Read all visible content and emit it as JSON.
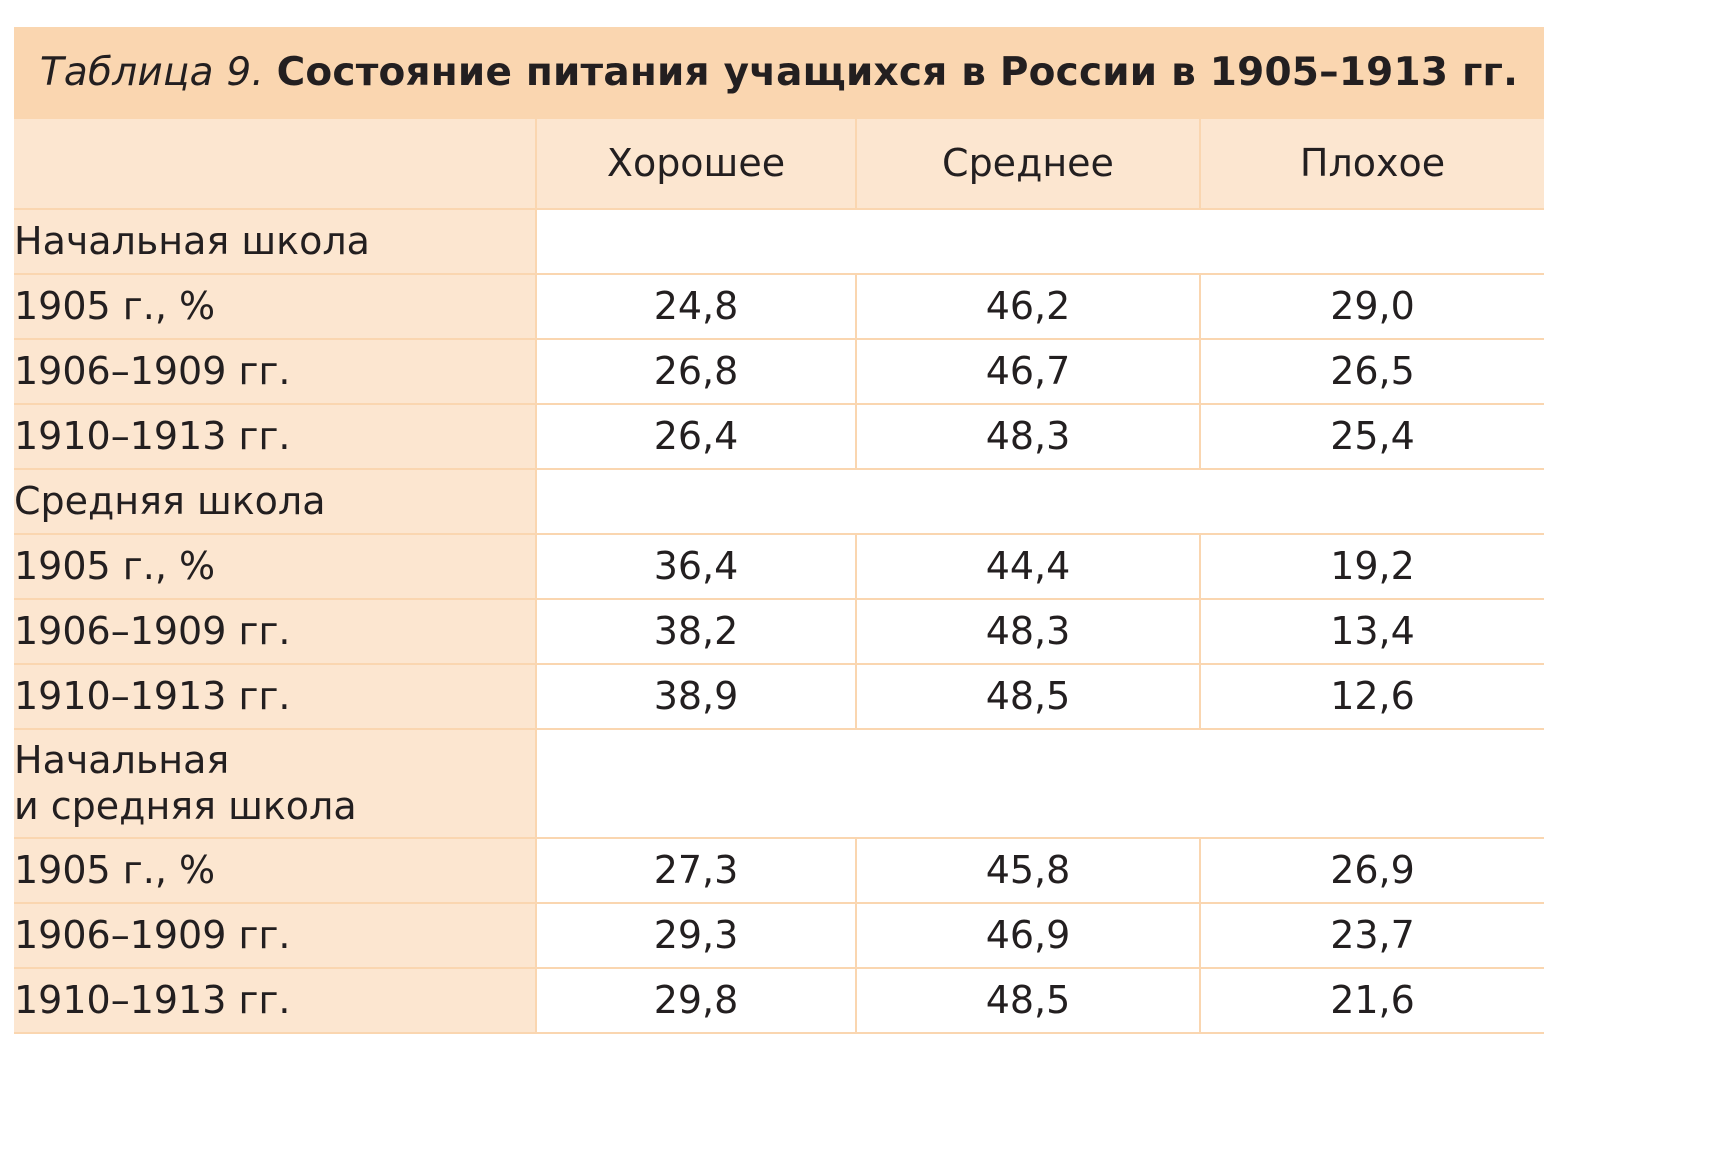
{
  "table": {
    "caption_label": "Таблица 9.",
    "caption_title": "Состояние питания учащихся в России в 1905–1913 гг.",
    "columns": [
      "",
      "Хорошее",
      "Среднее",
      "Плохое"
    ],
    "groups": [
      {
        "label_lines": [
          "Начальная школа"
        ],
        "rows": [
          {
            "label": "1905 г., %",
            "values": [
              "24,8",
              "46,2",
              "29,0"
            ]
          },
          {
            "label": "1906–1909 гг.",
            "values": [
              "26,8",
              "46,7",
              "26,5"
            ]
          },
          {
            "label": "1910–1913 гг.",
            "values": [
              "26,4",
              "48,3",
              "25,4"
            ]
          }
        ]
      },
      {
        "label_lines": [
          "Средняя школа"
        ],
        "rows": [
          {
            "label": "1905 г., %",
            "values": [
              "36,4",
              "44,4",
              "19,2"
            ]
          },
          {
            "label": "1906–1909 гг.",
            "values": [
              "38,2",
              "48,3",
              "13,4"
            ]
          },
          {
            "label": "1910–1913 гг.",
            "values": [
              "38,9",
              "48,5",
              "12,6"
            ]
          }
        ]
      },
      {
        "label_lines": [
          "Начальная",
          "и средняя школа"
        ],
        "rows": [
          {
            "label": "1905 г., %",
            "values": [
              "27,3",
              "45,8",
              "26,9"
            ]
          },
          {
            "label": "1906–1909 гг.",
            "values": [
              "29,3",
              "46,9",
              "23,7"
            ]
          },
          {
            "label": "1910–1913 гг.",
            "values": [
              "29,8",
              "48,5",
              "21,6"
            ]
          }
        ]
      }
    ]
  }
}
